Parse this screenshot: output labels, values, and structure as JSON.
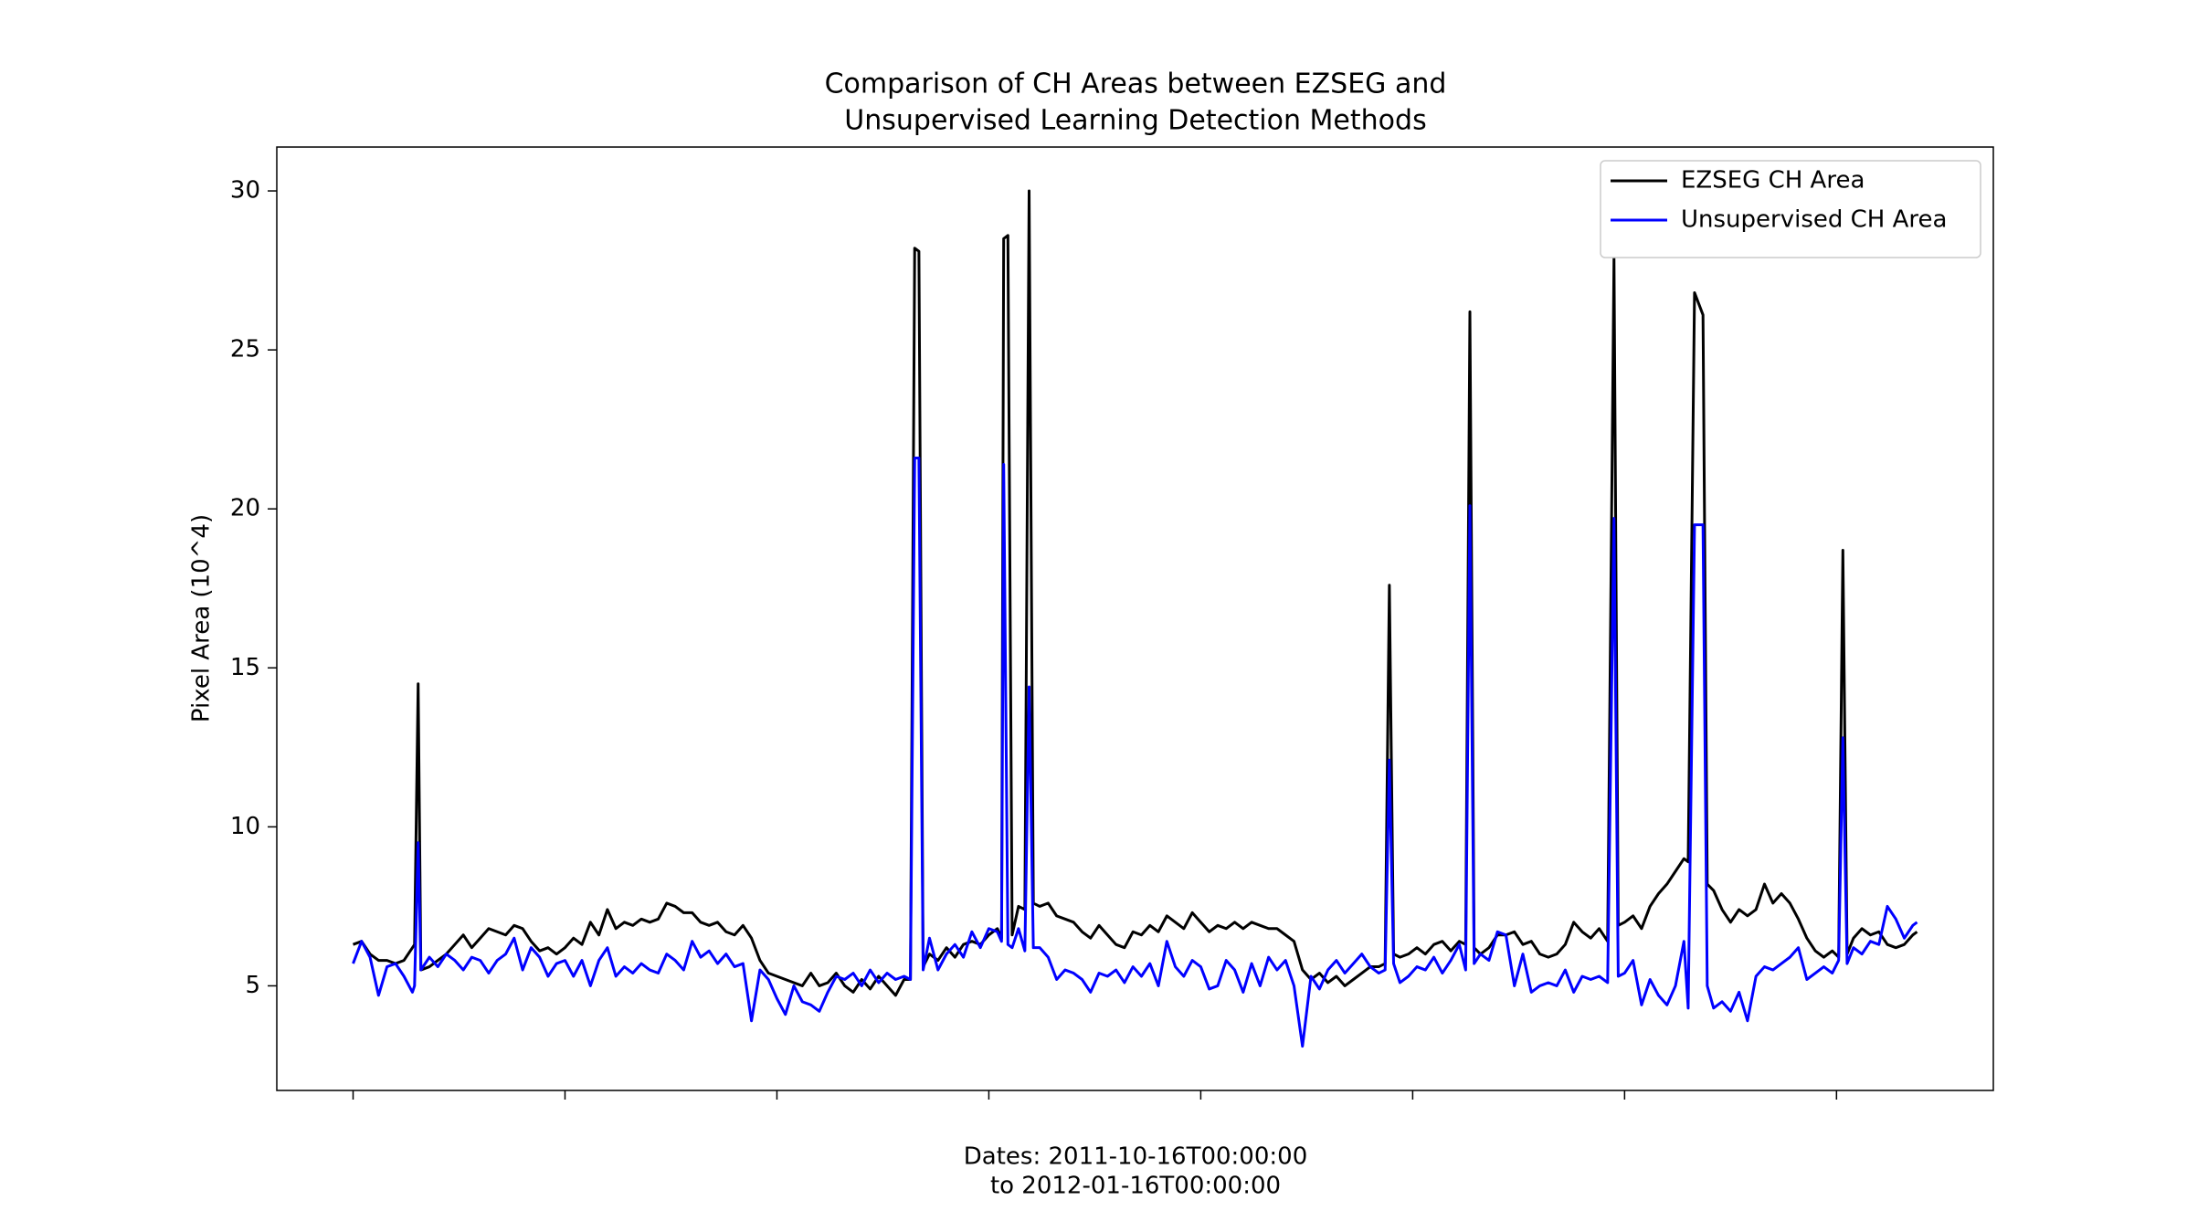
{
  "chart_data": {
    "type": "line",
    "title": [
      "Comparison of CH Areas between EZSEG and",
      "Unsupervised Learning Detection Methods"
    ],
    "xlabel": [
      "Dates: 2011-10-16T00:00:00",
      "to 2012-01-16T00:00:00"
    ],
    "ylabel": "Pixel Area (10^4)",
    "xlim": [
      -36,
      774
    ],
    "xticks": [
      0,
      100,
      200,
      300,
      400,
      500,
      600,
      700
    ],
    "ylim": [
      1.71,
      31.38
    ],
    "yticks": [
      5,
      10,
      15,
      20,
      25,
      30
    ],
    "legend": "upper right",
    "x": [
      0,
      4,
      8,
      12,
      16,
      20,
      24,
      28,
      29,
      30.7,
      32,
      36,
      40,
      44,
      48,
      52,
      56,
      60,
      64,
      68,
      72,
      76,
      80,
      84,
      88,
      92,
      96,
      100,
      104,
      108,
      112,
      116,
      120,
      124,
      128,
      132,
      136,
      140,
      144,
      148,
      152,
      156,
      160,
      164,
      168,
      172,
      176,
      180,
      184,
      188,
      192,
      196,
      200,
      204,
      208,
      212,
      216,
      220,
      224,
      228,
      232,
      236,
      240,
      244,
      248,
      252,
      256,
      260,
      263,
      265,
      267,
      269,
      272,
      276,
      280,
      284,
      288,
      292,
      296,
      300,
      304,
      306,
      307,
      309,
      311,
      314,
      317,
      319,
      321,
      324,
      328,
      332,
      336,
      340,
      344,
      348,
      352,
      356,
      360,
      364,
      368,
      372,
      376,
      380,
      384,
      388,
      392,
      396,
      400,
      404,
      408,
      412,
      416,
      420,
      424,
      428,
      432,
      436,
      440,
      444,
      448,
      452,
      456,
      460,
      464,
      468,
      472,
      476,
      480,
      484,
      487,
      489,
      491,
      494,
      498,
      502,
      506,
      510,
      514,
      518,
      522,
      525,
      527,
      529,
      532,
      536,
      540,
      544,
      548,
      552,
      556,
      560,
      564,
      568,
      572,
      576,
      580,
      584,
      588,
      592,
      595,
      597,
      600,
      604,
      608,
      612,
      616,
      620,
      624,
      628,
      630,
      633,
      637,
      639,
      642,
      646,
      650,
      654,
      658,
      662,
      666,
      670,
      674,
      678,
      682,
      686,
      690,
      694,
      698,
      701,
      703,
      705,
      708,
      712,
      716,
      720,
      724,
      728,
      732,
      736,
      738
    ],
    "series": [
      {
        "name": "EZSEG CH Area",
        "color": "#000000",
        "values": [
          6.3,
          6.4,
          6.0,
          5.8,
          5.8,
          5.7,
          5.8,
          6.2,
          6.3,
          14.5,
          5.5,
          5.6,
          5.8,
          6.0,
          6.3,
          6.6,
          6.2,
          6.5,
          6.8,
          6.7,
          6.6,
          6.9,
          6.8,
          6.4,
          6.1,
          6.2,
          6.0,
          6.2,
          6.5,
          6.3,
          7.0,
          6.6,
          7.4,
          6.8,
          7.0,
          6.9,
          7.1,
          7.0,
          7.1,
          7.6,
          7.5,
          7.3,
          7.3,
          7.0,
          6.9,
          7.0,
          6.7,
          6.6,
          6.9,
          6.5,
          5.8,
          5.4,
          5.3,
          5.2,
          5.1,
          5.0,
          5.4,
          5.0,
          5.1,
          5.4,
          5.0,
          4.8,
          5.2,
          4.9,
          5.3,
          5.0,
          4.7,
          5.2,
          5.2,
          28.2,
          28.1,
          5.6,
          6.0,
          5.8,
          6.2,
          5.9,
          6.3,
          6.4,
          6.3,
          6.6,
          6.8,
          6.5,
          28.5,
          28.6,
          6.6,
          7.5,
          7.4,
          30.0,
          7.6,
          7.5,
          7.6,
          7.2,
          7.1,
          7.0,
          6.7,
          6.5,
          6.9,
          6.6,
          6.3,
          6.2,
          6.7,
          6.6,
          6.9,
          6.7,
          7.2,
          7.0,
          6.8,
          7.3,
          7.0,
          6.7,
          6.9,
          6.8,
          7.0,
          6.8,
          7.0,
          6.9,
          6.8,
          6.8,
          6.6,
          6.4,
          5.5,
          5.2,
          5.4,
          5.1,
          5.3,
          5.0,
          5.2,
          5.4,
          5.6,
          5.6,
          5.7,
          17.6,
          6.0,
          5.9,
          6.0,
          6.2,
          6.0,
          6.3,
          6.4,
          6.1,
          6.4,
          6.3,
          26.2,
          6.2,
          6.0,
          6.2,
          6.6,
          6.6,
          6.7,
          6.3,
          6.4,
          6.0,
          5.9,
          6.0,
          6.3,
          7.0,
          6.7,
          6.5,
          6.8,
          6.4,
          27.9,
          6.9,
          7.0,
          7.2,
          6.8,
          7.5,
          7.9,
          8.2,
          8.6,
          9.0,
          8.9,
          26.8,
          26.1,
          8.2,
          8.0,
          7.4,
          7.0,
          7.4,
          7.2,
          7.4,
          8.2,
          7.6,
          7.9,
          7.6,
          7.1,
          6.5,
          6.1,
          5.9,
          6.1,
          5.9,
          18.7,
          6.0,
          6.5,
          6.8,
          6.6,
          6.7,
          6.3,
          6.2,
          6.3,
          6.6,
          6.7
        ]
      },
      {
        "name": "Unsupervised CH Area",
        "color": "#0000ff",
        "values": [
          5.7,
          6.4,
          5.9,
          4.7,
          5.6,
          5.7,
          5.3,
          4.8,
          5.0,
          9.5,
          5.5,
          5.9,
          5.6,
          6.0,
          5.8,
          5.5,
          5.9,
          5.8,
          5.4,
          5.8,
          6.0,
          6.5,
          5.5,
          6.2,
          5.9,
          5.3,
          5.7,
          5.8,
          5.3,
          5.8,
          5.0,
          5.8,
          6.2,
          5.3,
          5.6,
          5.4,
          5.7,
          5.5,
          5.4,
          6.0,
          5.8,
          5.5,
          6.4,
          5.9,
          6.1,
          5.7,
          6.0,
          5.6,
          5.7,
          3.9,
          5.5,
          5.2,
          4.6,
          4.1,
          5.0,
          4.5,
          4.4,
          4.2,
          4.8,
          5.3,
          5.2,
          5.4,
          5.0,
          5.5,
          5.1,
          5.4,
          5.2,
          5.3,
          5.2,
          21.6,
          21.6,
          5.5,
          6.5,
          5.5,
          6.0,
          6.3,
          5.9,
          6.7,
          6.2,
          6.8,
          6.7,
          6.4,
          21.4,
          6.3,
          6.2,
          6.8,
          6.1,
          14.4,
          6.2,
          6.2,
          5.9,
          5.2,
          5.5,
          5.4,
          5.2,
          4.8,
          5.4,
          5.3,
          5.5,
          5.1,
          5.6,
          5.3,
          5.7,
          5.0,
          6.4,
          5.6,
          5.3,
          5.8,
          5.6,
          4.9,
          5.0,
          5.8,
          5.5,
          4.8,
          5.7,
          5.0,
          5.9,
          5.5,
          5.8,
          5.0,
          3.1,
          5.3,
          4.9,
          5.5,
          5.8,
          5.4,
          5.7,
          6.0,
          5.6,
          5.4,
          5.5,
          12.1,
          5.7,
          5.1,
          5.3,
          5.6,
          5.5,
          5.9,
          5.4,
          5.8,
          6.3,
          5.5,
          20.1,
          5.7,
          6.0,
          5.8,
          6.7,
          6.6,
          5.0,
          6.0,
          4.8,
          5.0,
          5.1,
          5.0,
          5.5,
          4.8,
          5.3,
          5.2,
          5.3,
          5.1,
          19.7,
          5.3,
          5.4,
          5.8,
          4.4,
          5.2,
          4.7,
          4.4,
          5.0,
          6.4,
          4.3,
          19.5,
          19.5,
          5.0,
          4.3,
          4.5,
          4.2,
          4.8,
          3.9,
          5.3,
          5.6,
          5.5,
          5.7,
          5.9,
          6.2,
          5.2,
          5.4,
          5.6,
          5.4,
          5.8,
          12.8,
          5.7,
          6.2,
          6.0,
          6.4,
          6.3,
          7.5,
          7.1,
          6.5,
          6.9,
          7.0
        ]
      }
    ]
  }
}
